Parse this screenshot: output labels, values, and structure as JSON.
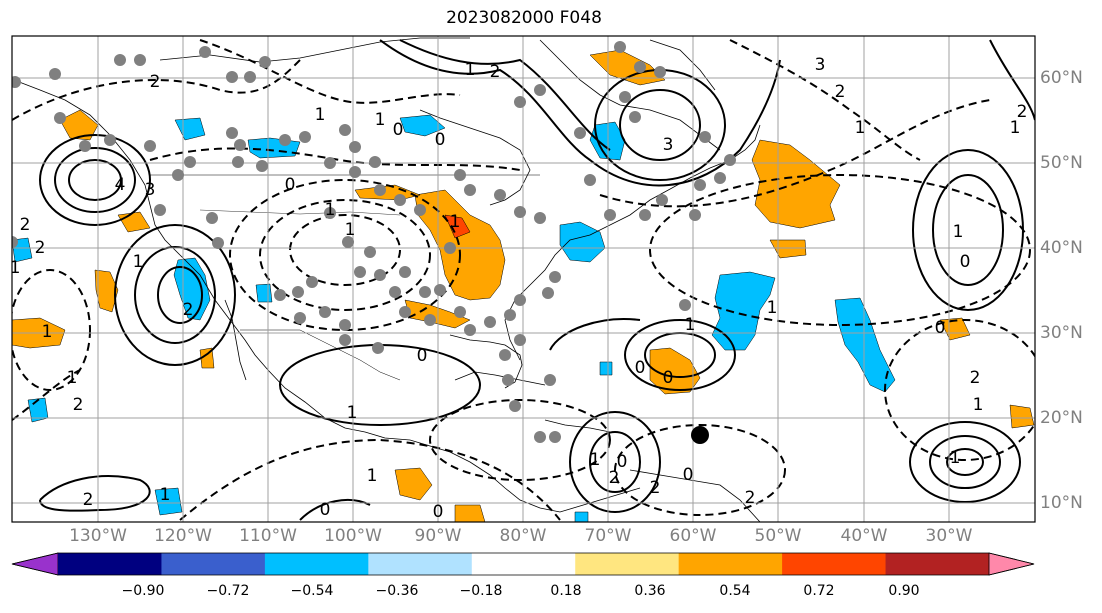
{
  "title": "2023082000 F048",
  "lon_labels": [
    "130°W",
    "120°W",
    "110°W",
    "100°W",
    "90°W",
    "80°W",
    "70°W",
    "60°W",
    "50°W",
    "40°W",
    "30°W"
  ],
  "lat_labels": [
    "60°N",
    "50°N",
    "40°N",
    "30°N",
    "20°N",
    "10°N"
  ],
  "colorbar": {
    "ticks": [
      "−0.90",
      "−0.72",
      "−0.54",
      "−0.36",
      "−0.18",
      "0.18",
      "0.36",
      "0.54",
      "0.72",
      "0.90"
    ],
    "colors": [
      "#9932cc",
      "#000080",
      "#3a5fcd",
      "#00bfff",
      "#b0e2ff",
      "#ffffff",
      "#ffe680",
      "#ffa500",
      "#ff4500",
      "#b22222",
      "#ff88aa"
    ]
  },
  "contour_labels": [
    "2",
    "2",
    "1",
    "4",
    "3",
    "1",
    "2",
    "0",
    "1",
    "1",
    "1",
    "0",
    "0",
    "1",
    "3",
    "1",
    "3",
    "2",
    "1",
    "2",
    "1",
    "1",
    "0",
    "0",
    "2",
    "1",
    "1",
    "1",
    "0",
    "0",
    "1",
    "0",
    "2",
    "2",
    "2",
    "1",
    "0",
    "2",
    "1",
    "0",
    "0",
    "1",
    "1",
    "0",
    "2",
    "1",
    "2",
    "2",
    "1",
    "1"
  ],
  "colors": {
    "positive": "#ffa500",
    "negative": "#00bfff",
    "station": "#808080",
    "grid": "#a0a0a0"
  }
}
